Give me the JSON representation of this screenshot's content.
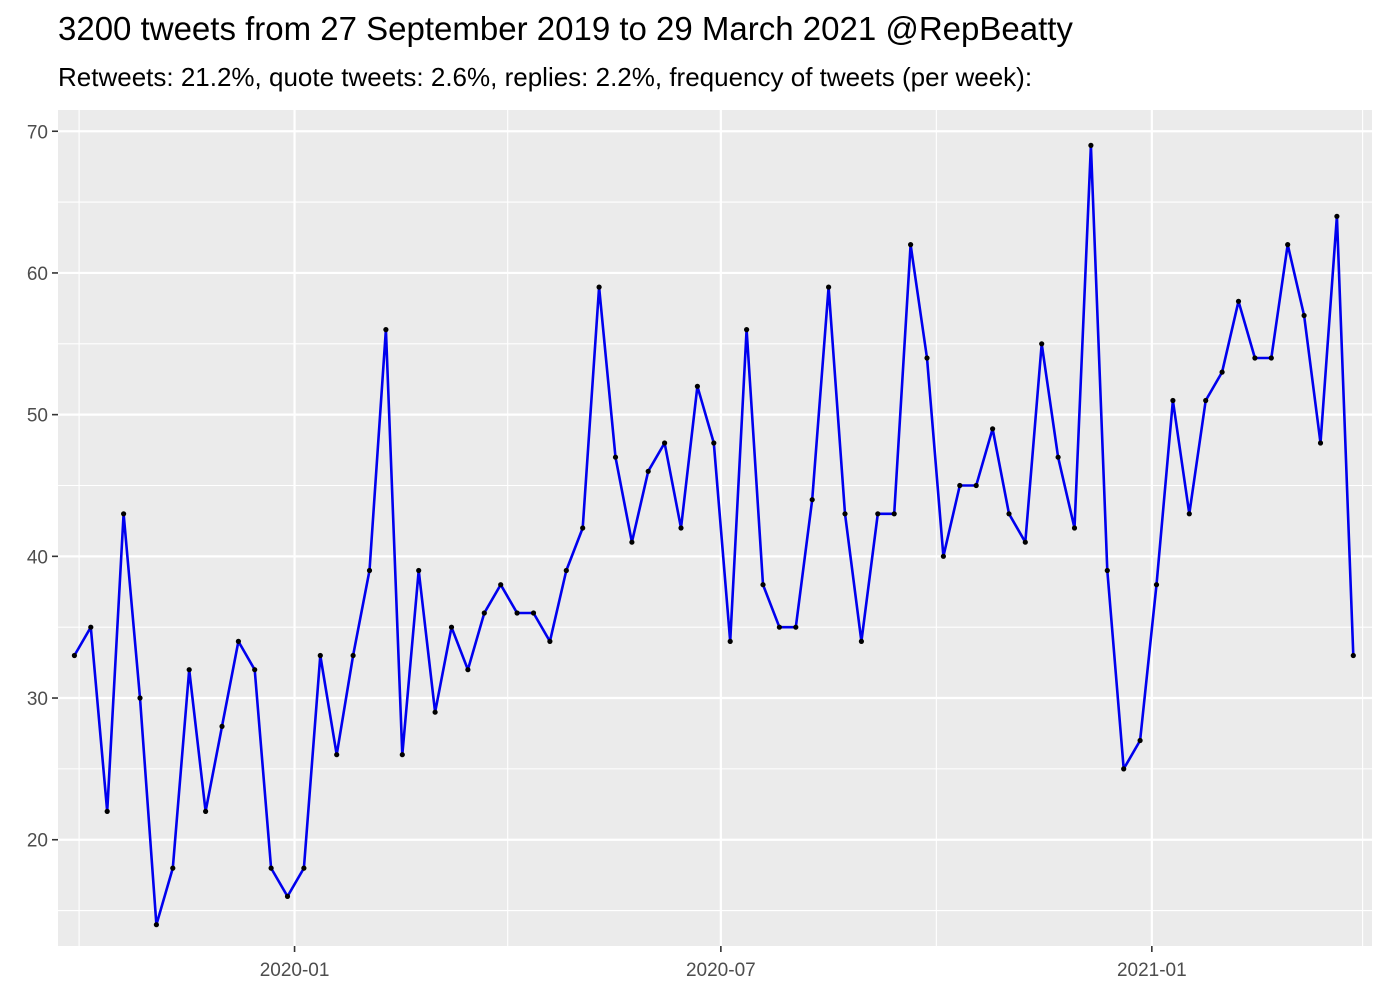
{
  "chart_data": {
    "type": "line",
    "title": "3200 tweets from 27 September 2019 to 29 March 2021 @RepBeatty",
    "subtitle": "Retweets: 21.2%, quote tweets: 2.6%, replies: 2.2%, frequency of tweets (per week):",
    "xlabel": "",
    "ylabel": "",
    "x_range": [
      "2019-09-22",
      "2021-04-05"
    ],
    "ylim": [
      12.5,
      71.5
    ],
    "x_ticks": [
      {
        "date": "2020-01-01",
        "label": "2020-01"
      },
      {
        "date": "2020-07-01",
        "label": "2020-07"
      },
      {
        "date": "2021-01-01",
        "label": "2021-01"
      }
    ],
    "x_minor_ticks": [
      "2019-10-01",
      "2020-04-01",
      "2020-10-01",
      "2021-04-01"
    ],
    "y_ticks": [
      20,
      30,
      40,
      50,
      60,
      70
    ],
    "y_minor_ticks": [
      15,
      25,
      35,
      45,
      55,
      65
    ],
    "grid": true,
    "line_color": "#0000ee",
    "point_color": "#000000",
    "panel_color": "#ebebeb",
    "grid_color": "#ffffff",
    "series": [
      {
        "x": [
          "2019-09-29",
          "2019-10-06",
          "2019-10-13",
          "2019-10-20",
          "2019-10-27",
          "2019-11-03",
          "2019-11-10",
          "2019-11-17",
          "2019-11-24",
          "2019-12-01",
          "2019-12-08",
          "2019-12-15",
          "2019-12-22",
          "2019-12-29",
          "2020-01-05",
          "2020-01-12",
          "2020-01-19",
          "2020-01-26",
          "2020-02-02",
          "2020-02-09",
          "2020-02-16",
          "2020-02-23",
          "2020-03-01",
          "2020-03-08",
          "2020-03-15",
          "2020-03-22",
          "2020-03-29",
          "2020-04-05",
          "2020-04-12",
          "2020-04-19",
          "2020-04-26",
          "2020-05-03",
          "2020-05-10",
          "2020-05-17",
          "2020-05-24",
          "2020-05-31",
          "2020-06-07",
          "2020-06-14",
          "2020-06-21",
          "2020-06-28",
          "2020-07-05",
          "2020-07-12",
          "2020-07-19",
          "2020-07-26",
          "2020-08-02",
          "2020-08-09",
          "2020-08-16",
          "2020-08-23",
          "2020-08-30",
          "2020-09-06",
          "2020-09-13",
          "2020-09-20",
          "2020-09-27",
          "2020-10-04",
          "2020-10-11",
          "2020-10-18",
          "2020-10-25",
          "2020-11-01",
          "2020-11-08",
          "2020-11-15",
          "2020-11-22",
          "2020-11-29",
          "2020-12-06",
          "2020-12-13",
          "2020-12-20",
          "2020-12-27",
          "2021-01-03",
          "2021-01-10",
          "2021-01-17",
          "2021-01-24",
          "2021-01-31",
          "2021-02-07",
          "2021-02-14",
          "2021-02-21",
          "2021-02-28",
          "2021-03-07",
          "2021-03-14",
          "2021-03-21",
          "2021-03-28"
        ],
        "values": [
          33,
          35,
          22,
          43,
          30,
          14,
          18,
          32,
          22,
          28,
          34,
          32,
          18,
          16,
          18,
          33,
          26,
          33,
          39,
          56,
          26,
          39,
          29,
          35,
          32,
          36,
          38,
          36,
          36,
          34,
          39,
          42,
          59,
          47,
          41,
          46,
          48,
          42,
          52,
          48,
          34,
          56,
          38,
          35,
          35,
          44,
          59,
          43,
          34,
          43,
          43,
          62,
          54,
          40,
          45,
          45,
          49,
          43,
          41,
          55,
          47,
          42,
          69,
          39,
          25,
          27,
          38,
          51,
          43,
          51,
          53,
          58,
          54,
          54,
          62,
          57,
          48,
          64,
          33
        ]
      }
    ]
  }
}
